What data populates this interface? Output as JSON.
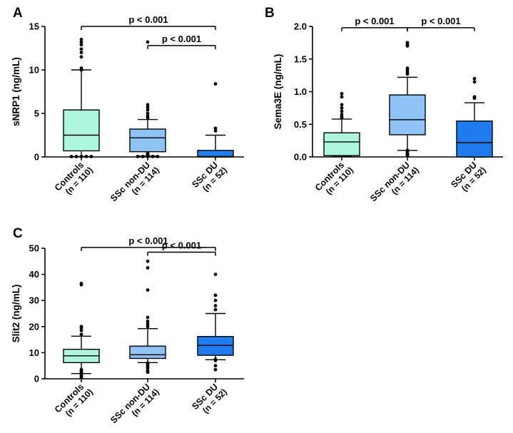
{
  "chart_data": [
    {
      "type": "box",
      "panel": "A",
      "ylabel": "sNRP1 (ng/mL)",
      "ylim": [
        0,
        15
      ],
      "yticks": [
        0,
        5,
        10,
        15
      ],
      "categories": [
        {
          "label": "Controls",
          "n": "(n = 110)"
        },
        {
          "label": "SSc non-DU",
          "n": "(n = 114)"
        },
        {
          "label": "SSc DU",
          "n": "(n = 52)"
        }
      ],
      "colors": [
        "#aef5df",
        "#8fc3f6",
        "#1f7cf0"
      ],
      "boxes": [
        {
          "whisker_low": 0.05,
          "q1": 0.7,
          "median": 2.5,
          "q3": 5.4,
          "whisker_high": 10.0,
          "outliers": [
            0.05,
            0.05,
            0.05,
            0.05,
            0.05,
            10.0,
            10.2,
            11.5,
            12.0,
            12.4,
            12.9,
            13.2,
            13.5
          ]
        },
        {
          "whisker_low": 0.1,
          "q1": 0.6,
          "median": 2.2,
          "q3": 3.2,
          "whisker_high": 4.3,
          "outliers": [
            0.05,
            0.05,
            0.05,
            0.05,
            0.05,
            0.1,
            0.15,
            0.2,
            0.25,
            0.3,
            0.4,
            4.5,
            4.7,
            5.0,
            5.4,
            5.7,
            6.0,
            13.2
          ]
        },
        {
          "whisker_low": 0.0,
          "q1": 0.0,
          "median": 0.05,
          "q3": 0.75,
          "whisker_high": 2.5,
          "outliers": [
            3.0,
            3.3,
            8.4
          ]
        }
      ],
      "comparisons": [
        {
          "from": 0,
          "to": 2,
          "label": "p < 0.001",
          "y": 15.0
        },
        {
          "from": 1,
          "to": 2,
          "label": "p < 0.001",
          "y": 12.8
        }
      ]
    },
    {
      "type": "box",
      "panel": "B",
      "ylabel": "Sema3E (ng/mL)",
      "ylim": [
        0,
        2.0
      ],
      "yticks": [
        0.0,
        0.5,
        1.0,
        1.5,
        2.0
      ],
      "categories": [
        {
          "label": "Controls",
          "n": "(n = 110)"
        },
        {
          "label": "SSc non-DU",
          "n": "(n = 114)"
        },
        {
          "label": "SSc DU",
          "n": "(n = 52)"
        }
      ],
      "colors": [
        "#aef5df",
        "#8fc3f6",
        "#1f7cf0"
      ],
      "boxes": [
        {
          "whisker_low": 0.01,
          "q1": 0.02,
          "median": 0.23,
          "q3": 0.37,
          "whisker_high": 0.58,
          "outliers": [
            0.6,
            0.62,
            0.65,
            0.7,
            0.75,
            0.8,
            0.92,
            0.97
          ]
        },
        {
          "whisker_low": 0.1,
          "q1": 0.34,
          "median": 0.57,
          "q3": 0.95,
          "whisker_high": 1.22,
          "outliers": [
            0.02,
            0.03,
            0.04,
            0.05,
            0.06,
            0.08,
            0.1,
            1.27,
            1.3,
            1.33,
            1.36,
            1.7,
            1.72,
            1.75
          ]
        },
        {
          "whisker_low": 0.0,
          "q1": 0.0,
          "median": 0.22,
          "q3": 0.55,
          "whisker_high": 0.83,
          "outliers": [
            0.9,
            0.92,
            1.15,
            1.2
          ]
        }
      ],
      "comparisons": [
        {
          "from": 0,
          "to": 1,
          "label": "p < 0.001",
          "y": 1.98
        },
        {
          "from": 1,
          "to": 2,
          "label": "p < 0.001",
          "y": 1.98
        }
      ]
    },
    {
      "type": "box",
      "panel": "C",
      "ylabel": "Slit2 (ng/mL)",
      "ylim": [
        0,
        50
      ],
      "yticks": [
        0,
        10,
        20,
        30,
        40,
        50
      ],
      "categories": [
        {
          "label": "Controls",
          "n": "(n = 110)"
        },
        {
          "label": "SSc non-DU",
          "n": "(n = 114)"
        },
        {
          "label": "SSc DU",
          "n": "(n = 52)"
        }
      ],
      "colors": [
        "#aef5df",
        "#8fc3f6",
        "#1f7cf0"
      ],
      "boxes": [
        {
          "whisker_low": 2.0,
          "q1": 6.2,
          "median": 8.8,
          "q3": 11.3,
          "whisker_high": 16.3,
          "outliers": [
            0.5,
            1.0,
            1.5,
            2.0,
            2.5,
            3.0,
            3.5,
            17.0,
            18.5,
            19.5,
            20.0,
            36.0,
            36.5
          ]
        },
        {
          "whisker_low": 6.2,
          "q1": 7.8,
          "median": 9.2,
          "q3": 12.5,
          "whisker_high": 19.2,
          "outliers": [
            2.5,
            3.0,
            4.0,
            4.5,
            5.0,
            5.5,
            6.0,
            20.0,
            21.0,
            22.0,
            23.5,
            34.0,
            42.5,
            45.0
          ]
        },
        {
          "whisker_low": 7.3,
          "q1": 9.0,
          "median": 12.8,
          "q3": 16.2,
          "whisker_high": 25.0,
          "outliers": [
            3.5,
            5.0,
            7.0,
            7.5,
            26.5,
            28.0,
            30.0,
            32.0,
            40.0
          ]
        }
      ],
      "comparisons": [
        {
          "from": 0,
          "to": 2,
          "label": "p < 0.001",
          "y": 50.3
        },
        {
          "from": 1,
          "to": 2,
          "label": "p < 0.001",
          "y": 48.5
        }
      ]
    }
  ]
}
